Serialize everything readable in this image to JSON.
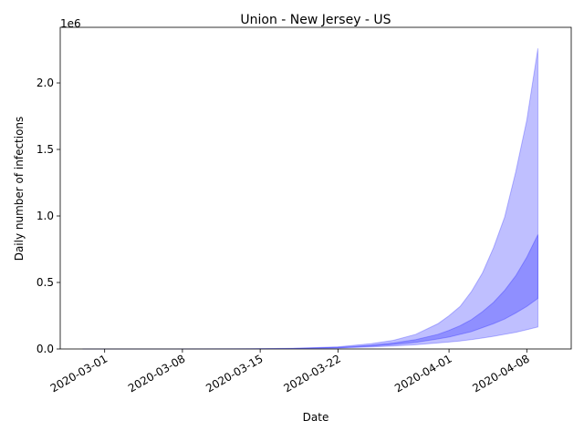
{
  "chart_data": {
    "type": "area",
    "title": "Union - New Jersey - US",
    "x_label": "Date",
    "y_label": "Daily number of infections",
    "y_offset_text": "1e6",
    "x": [
      "2020-02-28",
      "2020-03-07",
      "2020-03-14",
      "2020-03-18",
      "2020-03-22",
      "2020-03-25",
      "2020-03-27",
      "2020-03-29",
      "2020-03-31",
      "2020-04-01",
      "2020-04-02",
      "2020-04-03",
      "2020-04-04",
      "2020-04-05",
      "2020-04-06",
      "2020-04-07",
      "2020-04-08",
      "2020-04-09"
    ],
    "bands": [
      {
        "color": "#0000ff",
        "alpha": 0.25,
        "lower": [
          0,
          0,
          0.0007,
          0.0025,
          0.007,
          0.015,
          0.022,
          0.032,
          0.045,
          0.052,
          0.06,
          0.07,
          0.082,
          0.095,
          0.11,
          0.125,
          0.145,
          0.165
        ],
        "upper": [
          0,
          0.0002,
          0.0015,
          0.005,
          0.016,
          0.04,
          0.065,
          0.11,
          0.19,
          0.25,
          0.32,
          0.43,
          0.57,
          0.76,
          0.99,
          1.33,
          1.72,
          2.26
        ]
      },
      {
        "color": "#0000ff",
        "alpha": 0.25,
        "lower": [
          0,
          0,
          0.0008,
          0.003,
          0.009,
          0.021,
          0.033,
          0.05,
          0.075,
          0.09,
          0.11,
          0.13,
          0.16,
          0.19,
          0.225,
          0.27,
          0.32,
          0.38
        ],
        "upper": [
          0,
          0,
          0.001,
          0.004,
          0.012,
          0.028,
          0.045,
          0.07,
          0.11,
          0.14,
          0.175,
          0.22,
          0.28,
          0.35,
          0.44,
          0.55,
          0.69,
          0.86
        ]
      }
    ],
    "xlim": [
      "2020-02-26",
      "2020-04-12"
    ],
    "xticks": [
      "2020-03-01",
      "2020-03-08",
      "2020-03-15",
      "2020-03-22",
      "2020-04-01",
      "2020-04-08"
    ],
    "ylim": [
      0,
      2.418
    ],
    "yticks": [
      {
        "value": 0,
        "label": "0.0"
      },
      0.5,
      {
        "value": 1,
        "label": "1.0"
      },
      1.5,
      {
        "value": 2,
        "label": "2.0"
      }
    ]
  }
}
